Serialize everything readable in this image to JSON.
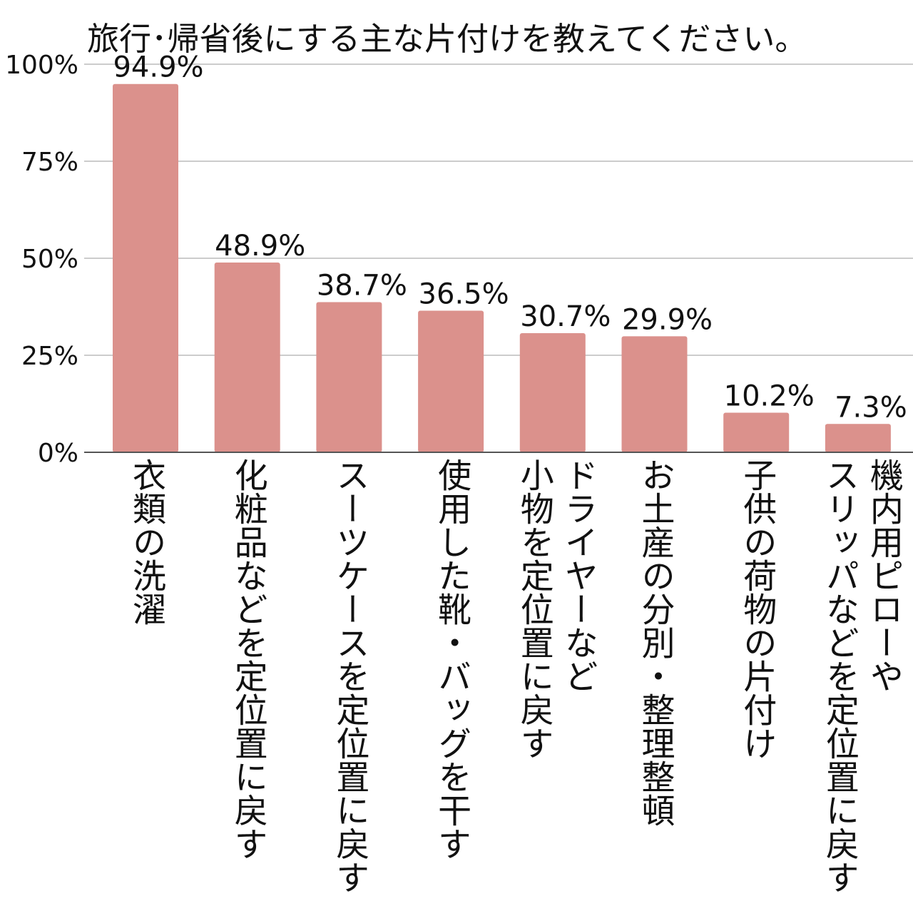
{
  "chart_data": {
    "type": "bar",
    "title": "旅行･帰省後にする主な片付けを教えてください。",
    "categories": [
      "衣類の洗濯",
      "化粧品などを定位置に戻す",
      "スーツケースを定位置に戻す",
      "使用した靴・バッグを干す",
      "ドライヤーなど\n小物を定位置に戻す",
      "お土産の分別・整理整頓",
      "子供の荷物の片付け",
      "機内用ピローや\nスリッパなどを定位置に戻す"
    ],
    "values": [
      94.9,
      48.9,
      38.7,
      36.5,
      30.7,
      29.9,
      10.2,
      7.3
    ],
    "value_labels": [
      "94.9%",
      "48.9%",
      "38.7%",
      "36.5%",
      "30.7%",
      "29.9%",
      "10.2%",
      "7.3%"
    ],
    "y_ticks": [
      0,
      25,
      50,
      75,
      100
    ],
    "y_tick_labels": [
      "0%",
      "25%",
      "50%",
      "75%",
      "100%"
    ],
    "ylim": [
      0,
      100
    ],
    "grid": true,
    "bar_color": "#db918c",
    "grid_color": "#cccccc",
    "axis_color": "#555555"
  }
}
